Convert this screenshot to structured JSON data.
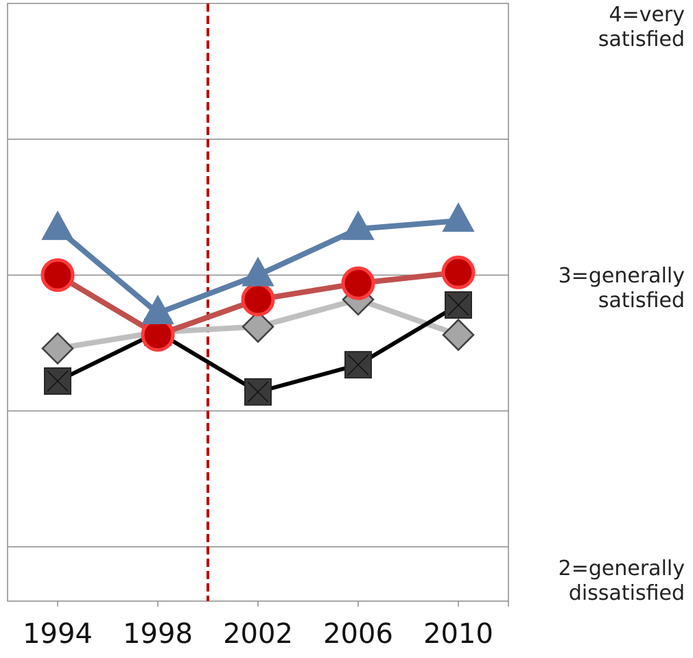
{
  "chart_data": {
    "type": "line",
    "title": "",
    "xlabel": "",
    "ylabel": "",
    "x": [
      "1994",
      "1998",
      "2002",
      "2006",
      "2010"
    ],
    "ylim": [
      1.8,
      4.0
    ],
    "ytick_values": [
      2,
      3,
      4
    ],
    "ytick_labels": [
      [
        "2=generally",
        "dissatisfied"
      ],
      [
        "3=generally",
        "satisfied"
      ],
      [
        "4=very",
        "satisfied"
      ]
    ],
    "grid": true,
    "reference_line": {
      "x_between": [
        "1998",
        "2002"
      ],
      "style": "dashed",
      "color": "#c00000"
    },
    "series": [
      {
        "marker": "diamond",
        "color": "#bfbfbf",
        "values": [
          2.73,
          2.79,
          2.81,
          2.91,
          2.78
        ]
      },
      {
        "marker": "square",
        "color": "#000000",
        "values": [
          2.61,
          2.79,
          2.57,
          2.67,
          2.89
        ]
      },
      {
        "marker": "circle",
        "color": "#c0504d",
        "values": [
          3.0,
          2.78,
          2.91,
          2.97,
          3.01
        ]
      },
      {
        "marker": "triangle",
        "color": "#5b7ea8",
        "values": [
          3.17,
          2.86,
          3.0,
          3.17,
          3.2
        ]
      }
    ]
  }
}
